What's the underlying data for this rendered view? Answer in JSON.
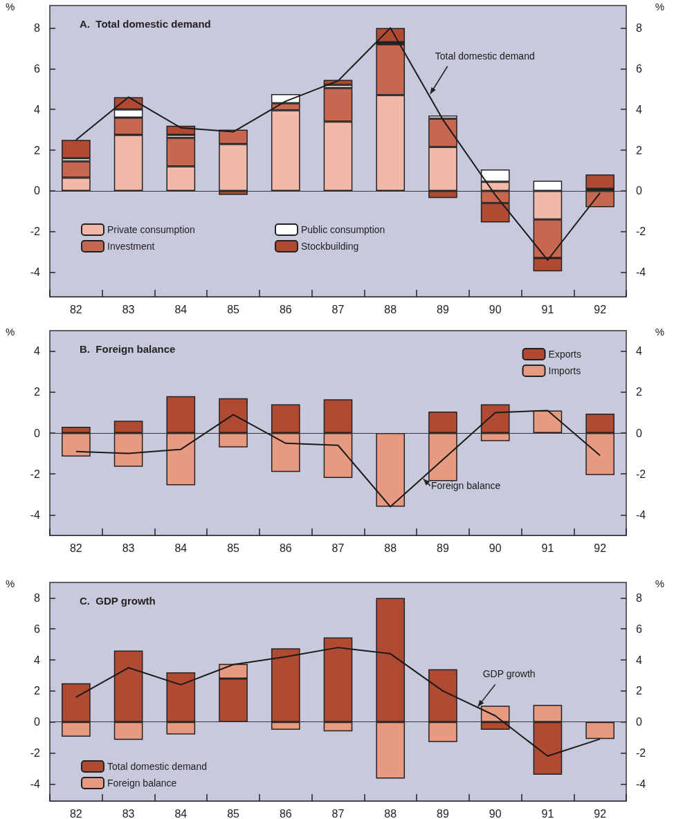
{
  "chart_data": [
    {
      "type": "bar",
      "title": "A.  Total domestic demand",
      "ylabel": "%",
      "y2label": "%",
      "stacked": true,
      "legend": "bottom left",
      "grid": false,
      "ref_lines": [
        {
          "axis": "y",
          "value": 0
        }
      ],
      "categories": [
        "82",
        "83",
        "84",
        "85",
        "86",
        "87",
        "88",
        "89",
        "90",
        "91",
        "92"
      ],
      "ylim": [
        -5.2,
        9.1
      ],
      "yticks": [
        -4,
        -2,
        0,
        2,
        4,
        6,
        8
      ],
      "y2lim": [
        -5.2,
        9.1
      ],
      "y2ticks": [
        -4,
        -2,
        0,
        2,
        4,
        6,
        8
      ],
      "series": [
        {
          "name": "Private consumption",
          "color": "#f2b8a8",
          "values": [
            0.65,
            2.75,
            1.2,
            2.3,
            3.95,
            3.4,
            4.7,
            2.15,
            0.45,
            -1.4,
            0.1
          ]
        },
        {
          "name": "Investment",
          "color": "#c8674f",
          "values": [
            0.8,
            0.85,
            1.4,
            0.7,
            0.35,
            1.65,
            2.5,
            1.4,
            -0.6,
            -1.9,
            -0.8
          ]
        },
        {
          "name": "Public consumption",
          "color": "#ffffff",
          "values": [
            0.15,
            0.4,
            0.15,
            0,
            0.45,
            0.15,
            0.1,
            0.15,
            0.6,
            0.5,
            0
          ]
        },
        {
          "name": "Stockbuilding",
          "color": "#b04a32",
          "values": [
            0.9,
            0.6,
            0.45,
            -0.2,
            0,
            0.25,
            0.7,
            -0.35,
            -0.95,
            -0.65,
            0.7
          ]
        },
        {
          "name": "Total domestic demand",
          "type": "line",
          "color": "#1a1a1a",
          "values": [
            2.5,
            4.6,
            3.1,
            2.9,
            4.4,
            5.4,
            8.0,
            3.5,
            -0.2,
            -3.4,
            -0.1
          ]
        }
      ]
    },
    {
      "type": "bar",
      "title": "B.  Foreign balance",
      "ylabel": "%",
      "y2label": "%",
      "stacked": true,
      "legend": "top right",
      "grid": false,
      "ref_lines": [
        {
          "axis": "y",
          "value": 0
        }
      ],
      "categories": [
        "82",
        "83",
        "84",
        "85",
        "86",
        "87",
        "88",
        "89",
        "90",
        "91",
        "92"
      ],
      "ylim": [
        -5,
        5
      ],
      "yticks": [
        -4,
        -2,
        0,
        2,
        4
      ],
      "y2lim": [
        -5,
        5
      ],
      "y2ticks": [
        -4,
        -2,
        0,
        2,
        4
      ],
      "series": [
        {
          "name": "Exports",
          "color": "#b04a32",
          "values": [
            0.3,
            0.6,
            1.8,
            1.7,
            1.4,
            1.65,
            0,
            1.05,
            1.4,
            0,
            0.95
          ]
        },
        {
          "name": "Imports",
          "color": "#e89a80",
          "values": [
            -1.15,
            -1.65,
            -2.55,
            -0.7,
            -1.9,
            -2.2,
            -3.6,
            -2.35,
            -0.4,
            1.1,
            -2.05
          ]
        },
        {
          "name": "Foreign balance",
          "type": "line",
          "color": "#1a1a1a",
          "values": [
            -0.9,
            -1.0,
            -0.8,
            0.9,
            -0.5,
            -0.6,
            -3.6,
            -1.3,
            1.0,
            1.1,
            -1.1
          ]
        }
      ]
    },
    {
      "type": "bar",
      "title": "C.  GDP growth",
      "ylabel": "%",
      "y2label": "%",
      "stacked": true,
      "legend": "bottom left",
      "grid": false,
      "ref_lines": [
        {
          "axis": "y",
          "value": 0
        }
      ],
      "categories": [
        "82",
        "83",
        "84",
        "85",
        "86",
        "87",
        "88",
        "89",
        "90",
        "91",
        "92"
      ],
      "ylim": [
        -5.1,
        9
      ],
      "yticks": [
        -4,
        -2,
        0,
        2,
        4,
        6,
        8
      ],
      "y2lim": [
        -5.1,
        9
      ],
      "y2ticks": [
        -4,
        -2,
        0,
        2,
        4,
        6,
        8
      ],
      "series": [
        {
          "name": "Total domestic demand",
          "color": "#b04a32",
          "values": [
            2.5,
            4.6,
            3.2,
            2.8,
            4.75,
            5.45,
            8.0,
            3.4,
            -0.5,
            -3.4,
            0
          ]
        },
        {
          "name": "Foreign balance",
          "color": "#e89a80",
          "values": [
            -0.95,
            -1.15,
            -0.8,
            0.95,
            -0.5,
            -0.6,
            -3.65,
            -1.3,
            1.05,
            1.1,
            -1.1
          ]
        },
        {
          "name": "GDP growth",
          "type": "line",
          "color": "#1a1a1a",
          "values": [
            1.6,
            3.5,
            2.4,
            3.7,
            4.2,
            4.8,
            4.4,
            2.0,
            0.4,
            -2.2,
            -1.1
          ]
        }
      ]
    }
  ]
}
